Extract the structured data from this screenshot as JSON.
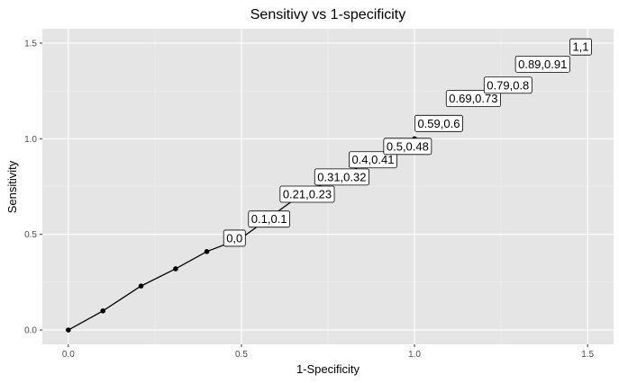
{
  "chart_data": {
    "type": "line",
    "title": "Sensitivy vs 1-specificity",
    "xlabel": "1-Specificity",
    "ylabel": "Sensitivity",
    "xlim": [
      -0.075,
      1.575
    ],
    "ylim": [
      -0.075,
      1.575
    ],
    "xticks": [
      0.0,
      0.5,
      1.0,
      1.5
    ],
    "xtick_labels": [
      "0.0",
      "0.5",
      "1.0",
      "1.5"
    ],
    "yticks": [
      0.0,
      0.5,
      1.0,
      1.5
    ],
    "ytick_labels": [
      "0.0",
      "0.5",
      "1.0",
      "1.5"
    ],
    "grid": true,
    "panel_background": "#e5e5e5",
    "line_color": "#000000",
    "series": [
      {
        "x": [
          0,
          0.1,
          0.21,
          0.31,
          0.4,
          0.5,
          0.59,
          0.69,
          0.79,
          0.89,
          1
        ],
        "y": [
          0,
          0.1,
          0.23,
          0.32,
          0.41,
          0.48,
          0.6,
          0.73,
          0.8,
          0.91,
          1
        ]
      }
    ],
    "annotations": [
      {
        "text": "0,0",
        "x": 0,
        "y": 0
      },
      {
        "text": "0.1,0.1",
        "x": 0.1,
        "y": 0.1
      },
      {
        "text": "0.21,0.23",
        "x": 0.21,
        "y": 0.23
      },
      {
        "text": "0.31,0.32",
        "x": 0.31,
        "y": 0.32
      },
      {
        "text": "0.4,0.41",
        "x": 0.4,
        "y": 0.41
      },
      {
        "text": "0.5,0.48",
        "x": 0.5,
        "y": 0.48
      },
      {
        "text": "0.59,0.6",
        "x": 0.59,
        "y": 0.6
      },
      {
        "text": "0.69,0.73",
        "x": 0.69,
        "y": 0.73
      },
      {
        "text": "0.79,0.8",
        "x": 0.79,
        "y": 0.8
      },
      {
        "text": "0.89,0.91",
        "x": 0.89,
        "y": 0.91
      },
      {
        "text": "1,1",
        "x": 1,
        "y": 1
      }
    ]
  }
}
